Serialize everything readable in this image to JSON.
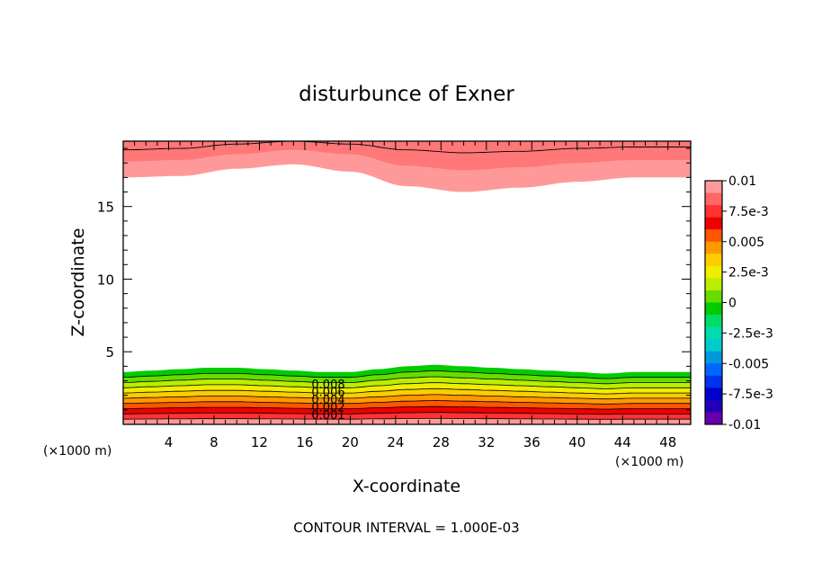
{
  "chart_data": {
    "type": "contour",
    "title": "disturbunce of Exner",
    "xlabel": "X-coordinate",
    "ylabel": "Z-coordinate",
    "x_unit_left": "(×1000 m)",
    "x_unit_right": "(×1000 m)",
    "x_ticks": [
      "4",
      "8",
      "12",
      "16",
      "20",
      "24",
      "28",
      "32",
      "36",
      "40",
      "44",
      "48"
    ],
    "x_tick_values": [
      4,
      8,
      12,
      16,
      20,
      24,
      28,
      32,
      36,
      40,
      44,
      48
    ],
    "y_ticks": [
      "5",
      "10",
      "15"
    ],
    "y_tick_values": [
      5,
      10,
      15
    ],
    "xlim": [
      0,
      50
    ],
    "ylim": [
      0,
      19.5
    ],
    "footer": "CONTOUR INTERVAL = 1.000E-03",
    "contour_labels": [
      "0.008",
      "0.006",
      "0.004",
      "0.002",
      "0.001"
    ],
    "contour_label_values": [
      0.008,
      0.006,
      0.004,
      0.002,
      0.001
    ],
    "colorbar": {
      "labels": [
        "0.01",
        "7.5e-3",
        "0.005",
        "2.5e-3",
        "0",
        "-2.5e-3",
        "-0.005",
        "-7.5e-3",
        "-0.01"
      ],
      "values": [
        0.01,
        0.0075,
        0.005,
        0.0025,
        0,
        -0.0025,
        -0.005,
        -0.0075,
        -0.01
      ],
      "colors_top_to_bottom": [
        "#ff9999",
        "#ff6666",
        "#ff3333",
        "#ee0000",
        "#ff5500",
        "#ff9900",
        "#ffcc00",
        "#eeee00",
        "#bbee00",
        "#66dd00",
        "#00cc00",
        "#00dd66",
        "#00ddaa",
        "#00cccc",
        "#0099dd",
        "#0066ff",
        "#0033ee",
        "#0000cc",
        "#2200bb",
        "#6600aa"
      ]
    },
    "fields": {
      "bottom_layer": {
        "base_height": [
          3.6,
          3.7,
          3.8,
          3.9,
          3.9,
          3.8,
          3.7,
          3.6,
          3.6,
          3.8,
          4.0,
          4.1,
          4.0,
          3.9,
          3.8,
          3.7,
          3.6,
          3.5,
          3.6,
          3.6,
          3.6
        ],
        "x": [
          0,
          2.5,
          5,
          7.5,
          10,
          12.5,
          15,
          17.5,
          20,
          22.5,
          25,
          27.5,
          30,
          32.5,
          35,
          37.5,
          40,
          42.5,
          45,
          47.5,
          50
        ],
        "levels": [
          0.001,
          0.002,
          0.003,
          0.004,
          0.005,
          0.006,
          0.007,
          0.008,
          0.009,
          0.01
        ],
        "colors": [
          "#00cc00",
          "#66dd00",
          "#bbee00",
          "#eeee00",
          "#ffcc00",
          "#ff9900",
          "#ff5500",
          "#ee0000",
          "#ff3333",
          "#ff9999"
        ]
      },
      "top_layer": {
        "x": [
          0,
          5,
          10,
          15,
          20,
          25,
          30,
          35,
          40,
          45,
          50
        ],
        "edge_height": [
          17.0,
          17.1,
          17.6,
          17.9,
          17.4,
          16.4,
          16.0,
          16.3,
          16.7,
          17.0,
          17.0
        ],
        "mid_height": [
          18.1,
          18.2,
          18.6,
          18.9,
          18.6,
          17.8,
          17.5,
          17.7,
          18.0,
          18.2,
          18.2
        ],
        "line_height": [
          18.9,
          19.0,
          19.3,
          19.5,
          19.3,
          18.9,
          18.7,
          18.8,
          19.0,
          19.1,
          19.1
        ],
        "colors": [
          "#ff9999",
          "#ff7777",
          "#ff5555"
        ]
      }
    }
  }
}
